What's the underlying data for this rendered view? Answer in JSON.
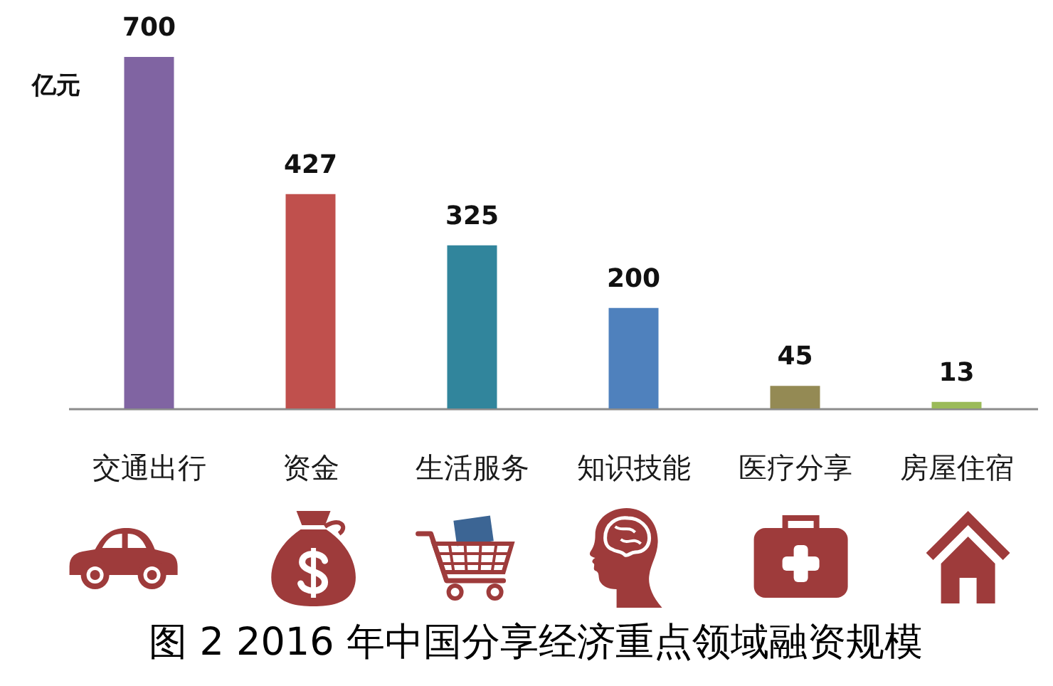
{
  "chart_data": {
    "type": "bar",
    "title": "图 2 2016 年中国分享经济重点领域融资规模",
    "ylabel": "亿元",
    "categories": [
      "交通出行",
      "资金",
      "生活服务",
      "知识技能",
      "医疗分享",
      "房屋住宿"
    ],
    "values": [
      700,
      427,
      325,
      200,
      45,
      13
    ],
    "colors": [
      "#8064a2",
      "#c0504d",
      "#31859c",
      "#4f81bd",
      "#948a54",
      "#9bbb59"
    ],
    "data_labels": true,
    "tick_labels": "x"
  }
}
